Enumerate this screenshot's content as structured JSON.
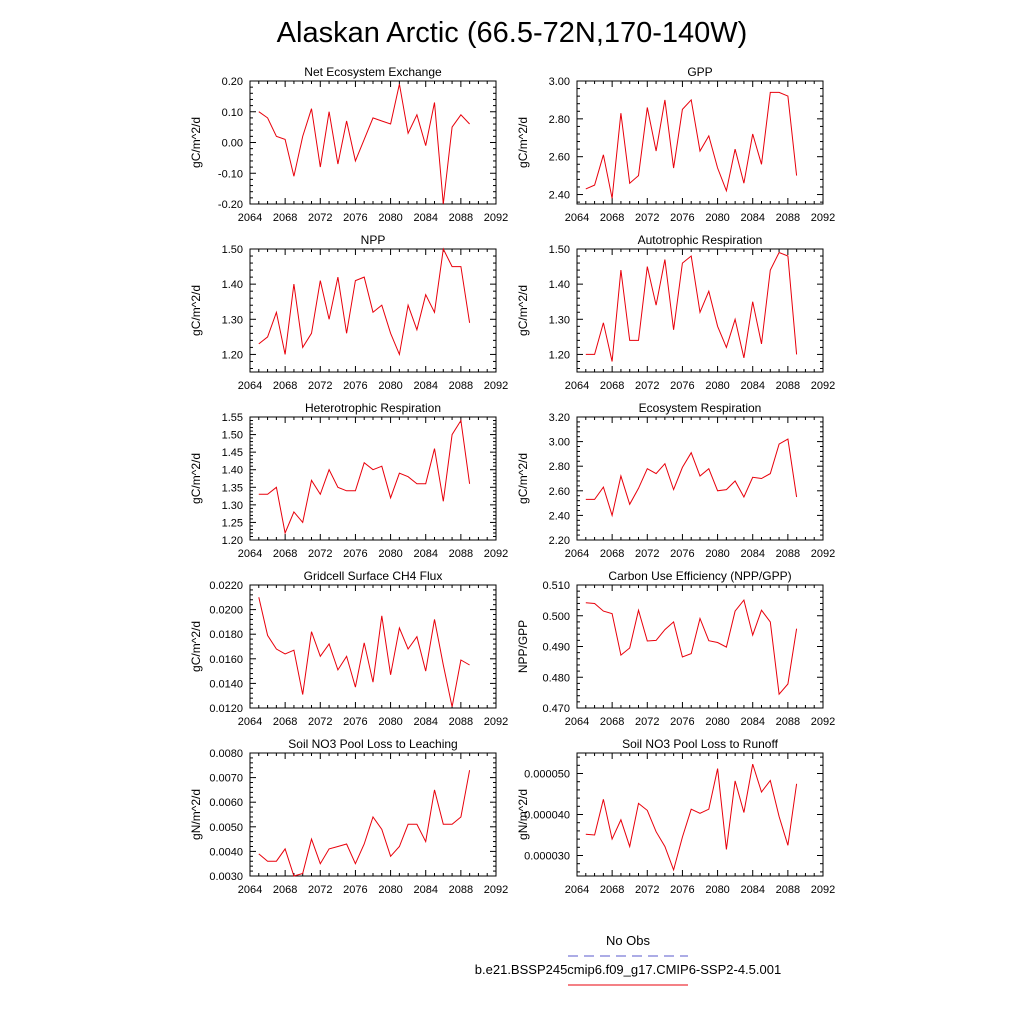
{
  "title": "Alaskan Arctic (66.5-72N,170-140W)",
  "colors": {
    "series": "#e8000b",
    "obs": "#5a5acd",
    "axis": "#000000"
  },
  "legend": {
    "placement": "bottom-center",
    "items": [
      {
        "label": "No Obs",
        "style": "dashed",
        "color": "#5a5acd"
      },
      {
        "label": "b.e21.BSSP245cmip6.f09_g17.CMIP6-SSP2-4.5.001",
        "style": "solid",
        "color": "#e8000b"
      }
    ]
  },
  "chart_data": [
    {
      "type": "line",
      "title": "Net Ecosystem Exchange",
      "xlabel": "",
      "ylabel": "gC/m^2/d",
      "xlim": [
        2064,
        2092
      ],
      "ylim": [
        -0.2,
        0.2
      ],
      "grid": false,
      "xticks": [
        "2064",
        "2068",
        "2072",
        "2076",
        "2080",
        "2084",
        "2088",
        "2092"
      ],
      "yticks": [
        "-0.20",
        "-0.10",
        "0.00",
        "0.10",
        "0.20"
      ],
      "series": [
        {
          "x": [
            2065,
            2066,
            2067,
            2068,
            2069,
            2070,
            2071,
            2072,
            2073,
            2074,
            2075,
            2076,
            2077,
            2078,
            2079,
            2080,
            2081,
            2082,
            2083,
            2084,
            2085,
            2086,
            2087,
            2088,
            2089
          ],
          "values": [
            0.1,
            0.08,
            0.02,
            0.01,
            -0.11,
            0.02,
            0.11,
            -0.08,
            0.1,
            -0.07,
            0.07,
            -0.06,
            0.01,
            0.08,
            0.07,
            0.06,
            0.19,
            0.03,
            0.09,
            -0.01,
            0.13,
            -0.2,
            0.05,
            0.09,
            0.06
          ]
        }
      ]
    },
    {
      "type": "line",
      "title": "GPP",
      "xlabel": "",
      "ylabel": "gC/m^2/d",
      "xlim": [
        2064,
        2092
      ],
      "ylim": [
        2.35,
        3.0
      ],
      "grid": false,
      "xticks": [
        "2064",
        "2068",
        "2072",
        "2076",
        "2080",
        "2084",
        "2088",
        "2092"
      ],
      "yticks": [
        "2.40",
        "2.60",
        "2.80",
        "3.00"
      ],
      "series": [
        {
          "x": [
            2065,
            2066,
            2067,
            2068,
            2069,
            2070,
            2071,
            2072,
            2073,
            2074,
            2075,
            2076,
            2077,
            2078,
            2079,
            2080,
            2081,
            2082,
            2083,
            2084,
            2085,
            2086,
            2087,
            2088,
            2089
          ],
          "values": [
            2.43,
            2.45,
            2.61,
            2.38,
            2.83,
            2.46,
            2.5,
            2.86,
            2.63,
            2.9,
            2.54,
            2.85,
            2.9,
            2.63,
            2.71,
            2.54,
            2.42,
            2.64,
            2.46,
            2.72,
            2.56,
            2.94,
            2.94,
            2.92,
            2.5
          ]
        }
      ]
    },
    {
      "type": "line",
      "title": "NPP",
      "xlabel": "",
      "ylabel": "gC/m^2/d",
      "xlim": [
        2064,
        2092
      ],
      "ylim": [
        1.15,
        1.5
      ],
      "grid": false,
      "xticks": [
        "2064",
        "2068",
        "2072",
        "2076",
        "2080",
        "2084",
        "2088",
        "2092"
      ],
      "yticks": [
        "1.20",
        "1.30",
        "1.40",
        "1.50"
      ],
      "series": [
        {
          "x": [
            2065,
            2066,
            2067,
            2068,
            2069,
            2070,
            2071,
            2072,
            2073,
            2074,
            2075,
            2076,
            2077,
            2078,
            2079,
            2080,
            2081,
            2082,
            2083,
            2084,
            2085,
            2086,
            2087,
            2088,
            2089
          ],
          "values": [
            1.23,
            1.25,
            1.32,
            1.2,
            1.4,
            1.22,
            1.26,
            1.41,
            1.3,
            1.42,
            1.26,
            1.41,
            1.42,
            1.32,
            1.34,
            1.26,
            1.2,
            1.34,
            1.27,
            1.37,
            1.32,
            1.5,
            1.45,
            1.45,
            1.29
          ]
        }
      ]
    },
    {
      "type": "line",
      "title": "Autotrophic Respiration",
      "xlabel": "",
      "ylabel": "gC/m^2/d",
      "xlim": [
        2064,
        2092
      ],
      "ylim": [
        1.15,
        1.5
      ],
      "grid": false,
      "xticks": [
        "2064",
        "2068",
        "2072",
        "2076",
        "2080",
        "2084",
        "2088",
        "2092"
      ],
      "yticks": [
        "1.20",
        "1.30",
        "1.40",
        "1.50"
      ],
      "series": [
        {
          "x": [
            2065,
            2066,
            2067,
            2068,
            2069,
            2070,
            2071,
            2072,
            2073,
            2074,
            2075,
            2076,
            2077,
            2078,
            2079,
            2080,
            2081,
            2082,
            2083,
            2084,
            2085,
            2086,
            2087,
            2088,
            2089
          ],
          "values": [
            1.2,
            1.2,
            1.29,
            1.18,
            1.44,
            1.24,
            1.24,
            1.45,
            1.34,
            1.47,
            1.27,
            1.46,
            1.48,
            1.32,
            1.38,
            1.28,
            1.22,
            1.3,
            1.19,
            1.35,
            1.23,
            1.44,
            1.49,
            1.48,
            1.2
          ]
        }
      ]
    },
    {
      "type": "line",
      "title": "Heterotrophic Respiration",
      "xlabel": "",
      "ylabel": "gC/m^2/d",
      "xlim": [
        2064,
        2092
      ],
      "ylim": [
        1.2,
        1.55
      ],
      "grid": false,
      "xticks": [
        "2064",
        "2068",
        "2072",
        "2076",
        "2080",
        "2084",
        "2088",
        "2092"
      ],
      "yticks": [
        "1.20",
        "1.25",
        "1.30",
        "1.35",
        "1.40",
        "1.45",
        "1.50",
        "1.55"
      ],
      "series": [
        {
          "x": [
            2065,
            2066,
            2067,
            2068,
            2069,
            2070,
            2071,
            2072,
            2073,
            2074,
            2075,
            2076,
            2077,
            2078,
            2079,
            2080,
            2081,
            2082,
            2083,
            2084,
            2085,
            2086,
            2087,
            2088,
            2089
          ],
          "values": [
            1.33,
            1.33,
            1.35,
            1.22,
            1.28,
            1.25,
            1.37,
            1.33,
            1.4,
            1.35,
            1.34,
            1.34,
            1.42,
            1.4,
            1.41,
            1.32,
            1.39,
            1.38,
            1.36,
            1.36,
            1.46,
            1.31,
            1.5,
            1.54,
            1.36
          ]
        }
      ]
    },
    {
      "type": "line",
      "title": "Ecosystem Respiration",
      "xlabel": "",
      "ylabel": "gC/m^2/d",
      "xlim": [
        2064,
        2092
      ],
      "ylim": [
        2.2,
        3.2
      ],
      "grid": false,
      "xticks": [
        "2064",
        "2068",
        "2072",
        "2076",
        "2080",
        "2084",
        "2088",
        "2092"
      ],
      "yticks": [
        "2.20",
        "2.40",
        "2.60",
        "2.80",
        "3.00",
        "3.20"
      ],
      "series": [
        {
          "x": [
            2065,
            2066,
            2067,
            2068,
            2069,
            2070,
            2071,
            2072,
            2073,
            2074,
            2075,
            2076,
            2077,
            2078,
            2079,
            2080,
            2081,
            2082,
            2083,
            2084,
            2085,
            2086,
            2087,
            2088,
            2089
          ],
          "values": [
            2.53,
            2.53,
            2.63,
            2.4,
            2.72,
            2.49,
            2.62,
            2.78,
            2.74,
            2.82,
            2.61,
            2.79,
            2.91,
            2.72,
            2.78,
            2.6,
            2.61,
            2.68,
            2.55,
            2.71,
            2.7,
            2.74,
            2.98,
            3.02,
            2.55
          ]
        }
      ]
    },
    {
      "type": "line",
      "title": "Gridcell Surface CH4 Flux",
      "xlabel": "",
      "ylabel": "gC/m^2/d",
      "xlim": [
        2064,
        2092
      ],
      "ylim": [
        0.012,
        0.022
      ],
      "grid": false,
      "xticks": [
        "2064",
        "2068",
        "2072",
        "2076",
        "2080",
        "2084",
        "2088",
        "2092"
      ],
      "yticks": [
        "0.0120",
        "0.0140",
        "0.0160",
        "0.0180",
        "0.0200",
        "0.0220"
      ],
      "series": [
        {
          "x": [
            2065,
            2066,
            2067,
            2068,
            2069,
            2070,
            2071,
            2072,
            2073,
            2074,
            2075,
            2076,
            2077,
            2078,
            2079,
            2080,
            2081,
            2082,
            2083,
            2084,
            2085,
            2086,
            2087,
            2088,
            2089
          ],
          "values": [
            0.021,
            0.0179,
            0.0168,
            0.0164,
            0.0167,
            0.0131,
            0.0182,
            0.0162,
            0.0172,
            0.0151,
            0.0162,
            0.0137,
            0.0173,
            0.0141,
            0.0195,
            0.0147,
            0.0185,
            0.0168,
            0.0178,
            0.015,
            0.0192,
            0.0155,
            0.0121,
            0.0159,
            0.0155
          ]
        }
      ]
    },
    {
      "type": "line",
      "title": "Carbon Use Efficiency (NPP/GPP)",
      "xlabel": "",
      "ylabel": "NPP/GPP",
      "xlim": [
        2064,
        2092
      ],
      "ylim": [
        0.47,
        0.51
      ],
      "grid": false,
      "xticks": [
        "2064",
        "2068",
        "2072",
        "2076",
        "2080",
        "2084",
        "2088",
        "2092"
      ],
      "yticks": [
        "0.470",
        "0.480",
        "0.490",
        "0.500",
        "0.510"
      ],
      "series": [
        {
          "x": [
            2065,
            2066,
            2067,
            2068,
            2069,
            2070,
            2071,
            2072,
            2073,
            2074,
            2075,
            2076,
            2077,
            2078,
            2079,
            2080,
            2081,
            2082,
            2083,
            2084,
            2085,
            2086,
            2087,
            2088,
            2089
          ],
          "values": [
            0.5042,
            0.504,
            0.5015,
            0.5007,
            0.4872,
            0.4895,
            0.5018,
            0.4918,
            0.492,
            0.4955,
            0.498,
            0.4866,
            0.4877,
            0.4991,
            0.4919,
            0.4913,
            0.4898,
            0.5015,
            0.5051,
            0.4937,
            0.5018,
            0.498,
            0.4745,
            0.4778,
            0.4958
          ]
        }
      ]
    },
    {
      "type": "line",
      "title": "Soil NO3 Pool Loss to Leaching",
      "xlabel": "",
      "ylabel": "gN/m^2/d",
      "xlim": [
        2064,
        2092
      ],
      "ylim": [
        0.003,
        0.008
      ],
      "grid": false,
      "xticks": [
        "2064",
        "2068",
        "2072",
        "2076",
        "2080",
        "2084",
        "2088",
        "2092"
      ],
      "yticks": [
        "0.0030",
        "0.0040",
        "0.0050",
        "0.0060",
        "0.0070",
        "0.0080"
      ],
      "series": [
        {
          "x": [
            2065,
            2066,
            2067,
            2068,
            2069,
            2070,
            2071,
            2072,
            2073,
            2074,
            2075,
            2076,
            2077,
            2078,
            2079,
            2080,
            2081,
            2082,
            2083,
            2084,
            2085,
            2086,
            2087,
            2088,
            2089
          ],
          "values": [
            0.0039,
            0.0036,
            0.0036,
            0.0041,
            0.003,
            0.0031,
            0.0045,
            0.0035,
            0.0041,
            0.0042,
            0.0043,
            0.0035,
            0.0043,
            0.0054,
            0.0049,
            0.0038,
            0.0042,
            0.0051,
            0.0051,
            0.0044,
            0.0065,
            0.0051,
            0.0051,
            0.0054,
            0.0073
          ]
        }
      ]
    },
    {
      "type": "line",
      "title": "Soil NO3 Pool Loss to Runoff",
      "xlabel": "",
      "ylabel": "gN/m^2/d",
      "xlim": [
        2064,
        2092
      ],
      "ylim": [
        2.5e-05,
        5.5e-05
      ],
      "grid": false,
      "xticks": [
        "2064",
        "2068",
        "2072",
        "2076",
        "2080",
        "2084",
        "2088",
        "2092"
      ],
      "yticks": [
        "0.000030",
        "0.000040",
        "0.000050"
      ],
      "series": [
        {
          "x": [
            2065,
            2066,
            2067,
            2068,
            2069,
            2070,
            2071,
            2072,
            2073,
            2074,
            2075,
            2076,
            2077,
            2078,
            2079,
            2080,
            2081,
            2082,
            2083,
            2084,
            2085,
            2086,
            2087,
            2088,
            2089
          ],
          "values": [
            3.52e-05,
            3.5e-05,
            4.37e-05,
            3.4e-05,
            3.87e-05,
            3.22e-05,
            4.27e-05,
            4.1e-05,
            3.58e-05,
            3.22e-05,
            2.65e-05,
            3.45e-05,
            4.13e-05,
            4.03e-05,
            4.13e-05,
            5.12e-05,
            3.15e-05,
            4.82e-05,
            4.05e-05,
            5.23e-05,
            4.55e-05,
            4.83e-05,
            3.95e-05,
            3.25e-05,
            4.75e-05
          ]
        }
      ]
    }
  ]
}
